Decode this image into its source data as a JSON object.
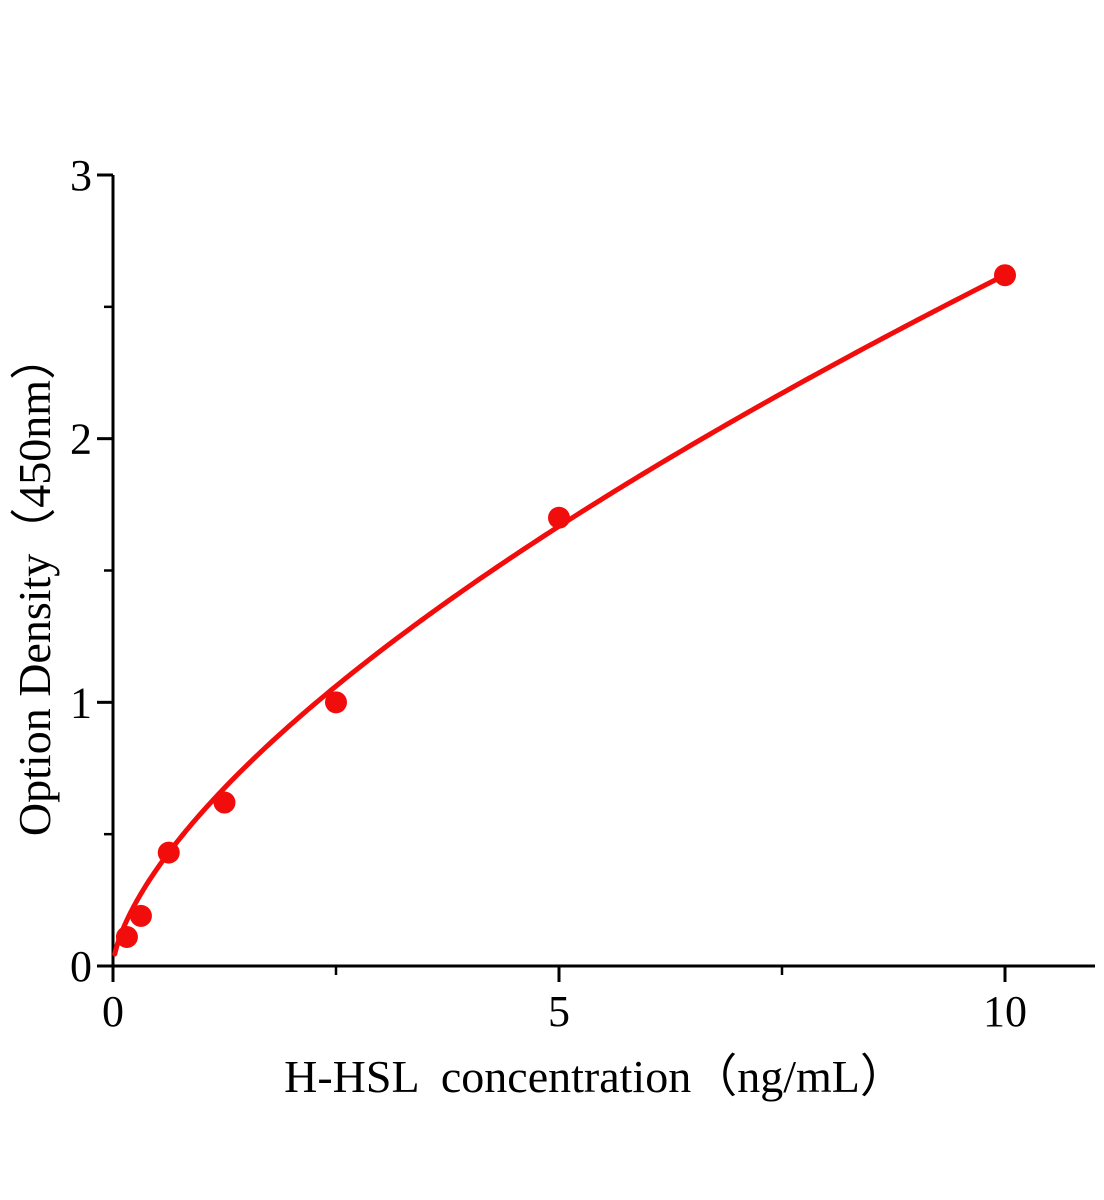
{
  "chart_data": {
    "type": "scatter",
    "title": "",
    "xlabel": "H-HSL  concentration（ng/mL）",
    "ylabel": "Option Density（450nm）",
    "points": {
      "x": [
        0.156,
        0.313,
        0.625,
        1.25,
        2.5,
        5,
        10
      ],
      "y": [
        0.11,
        0.19,
        0.43,
        0.62,
        1.0,
        1.7,
        2.62
      ]
    },
    "fit_curve": {
      "type": "power",
      "a": 0.584,
      "b": 0.652,
      "x_start": 0.02,
      "x_end": 10
    },
    "axes": {
      "xlim": [
        0,
        11
      ],
      "ylim": [
        0,
        3
      ],
      "x_major_ticks": [
        0,
        5,
        10
      ],
      "x_major_tick_labels": [
        "0",
        "5",
        "10"
      ],
      "x_minor_ticks": [
        2.5,
        7.5
      ],
      "y_major_ticks": [
        0,
        1,
        2,
        3
      ],
      "y_major_tick_labels": [
        "0",
        "1",
        "2",
        "3"
      ],
      "y_minor_ticks": [
        0.5,
        1.5,
        2.5
      ],
      "grid": false
    },
    "colors": {
      "curve": "#f20d0d",
      "points": "#f20d0d",
      "axis": "#000000",
      "background": "#ffffff"
    },
    "marker": {
      "shape": "circle",
      "radius_px": 11
    }
  }
}
